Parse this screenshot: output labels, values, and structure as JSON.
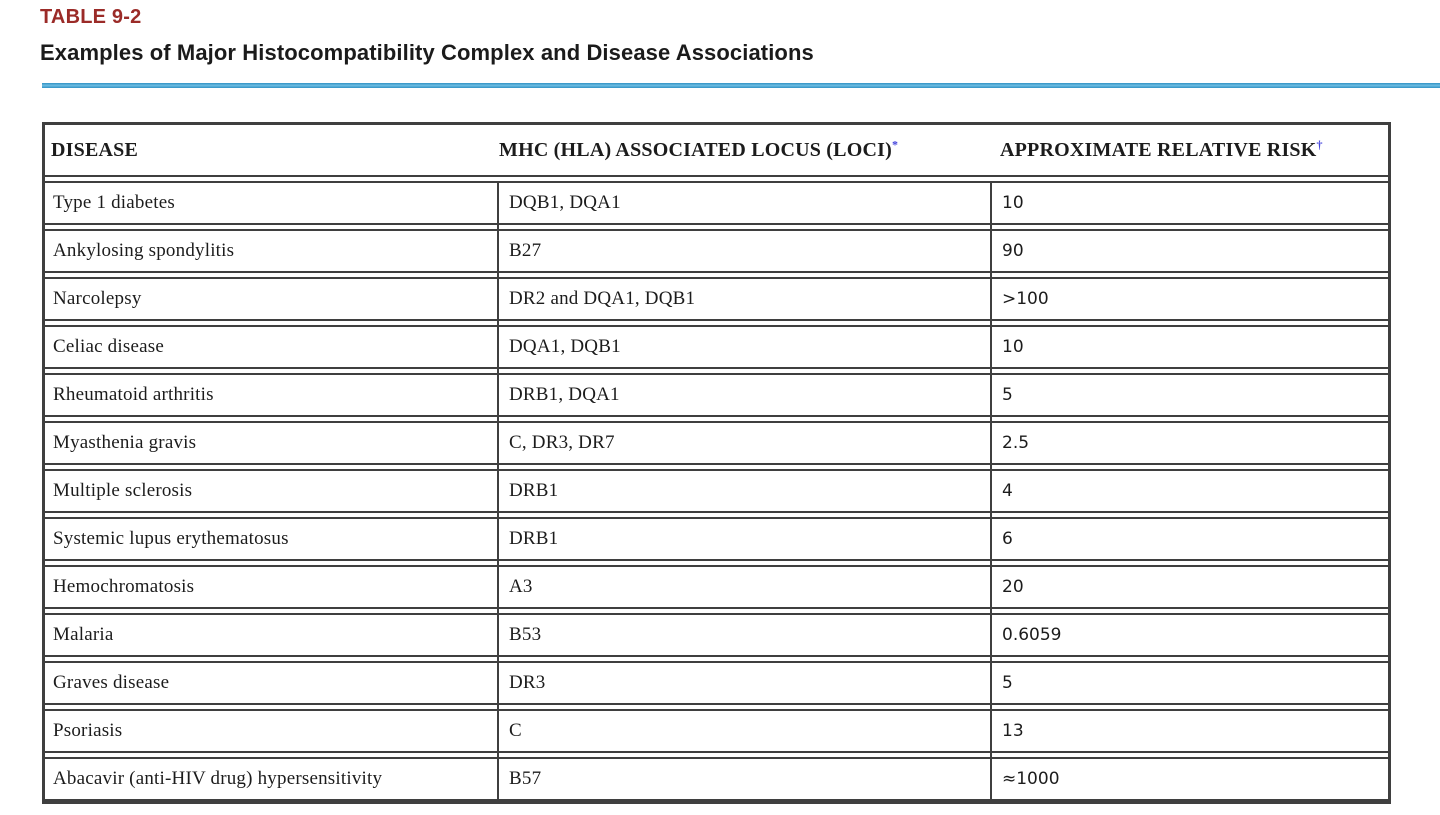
{
  "header": {
    "table_label": "TABLE 9-2",
    "title": "Examples of Major Histocompatibility Complex and Disease Associations"
  },
  "colors": {
    "label_red": "#9b2b28",
    "rule_blue": "#3191c4",
    "border_gray": "#3f3f3f",
    "footnote_blue": "#4747dd"
  },
  "table": {
    "columns": [
      {
        "label": "DISEASE",
        "footnote_mark": ""
      },
      {
        "label": "MHC (HLA) ASSOCIATED LOCUS (LOCI)",
        "footnote_mark": "*"
      },
      {
        "label": "APPROXIMATE RELATIVE RISK",
        "footnote_mark": "†"
      }
    ],
    "rows": [
      {
        "disease": "Type 1 diabetes",
        "locus": "DQB1, DQA1",
        "risk": "10"
      },
      {
        "disease": "Ankylosing spondylitis",
        "locus": "B27",
        "risk": "90"
      },
      {
        "disease": "Narcolepsy",
        "locus": "DR2 and DQA1, DQB1",
        "risk": ">100"
      },
      {
        "disease": "Celiac disease",
        "locus": "DQA1, DQB1",
        "risk": "10"
      },
      {
        "disease": "Rheumatoid arthritis",
        "locus": "DRB1, DQA1",
        "risk": "5"
      },
      {
        "disease": "Myasthenia gravis",
        "locus": "C, DR3, DR7",
        "risk": "2.5"
      },
      {
        "disease": "Multiple sclerosis",
        "locus": "DRB1",
        "risk": "4"
      },
      {
        "disease": "Systemic lupus erythematosus",
        "locus": "DRB1",
        "risk": "6"
      },
      {
        "disease": "Hemochromatosis",
        "locus": "A3",
        "risk": "20"
      },
      {
        "disease": "Malaria",
        "locus": "B53",
        "risk": "0.6059"
      },
      {
        "disease": "Graves disease",
        "locus": "DR3",
        "risk": "5"
      },
      {
        "disease": "Psoriasis",
        "locus": "C",
        "risk": "13"
      },
      {
        "disease": "Abacavir (anti-HIV drug) hypersensitivity",
        "locus": "B57",
        "risk": "≈1000"
      }
    ]
  }
}
